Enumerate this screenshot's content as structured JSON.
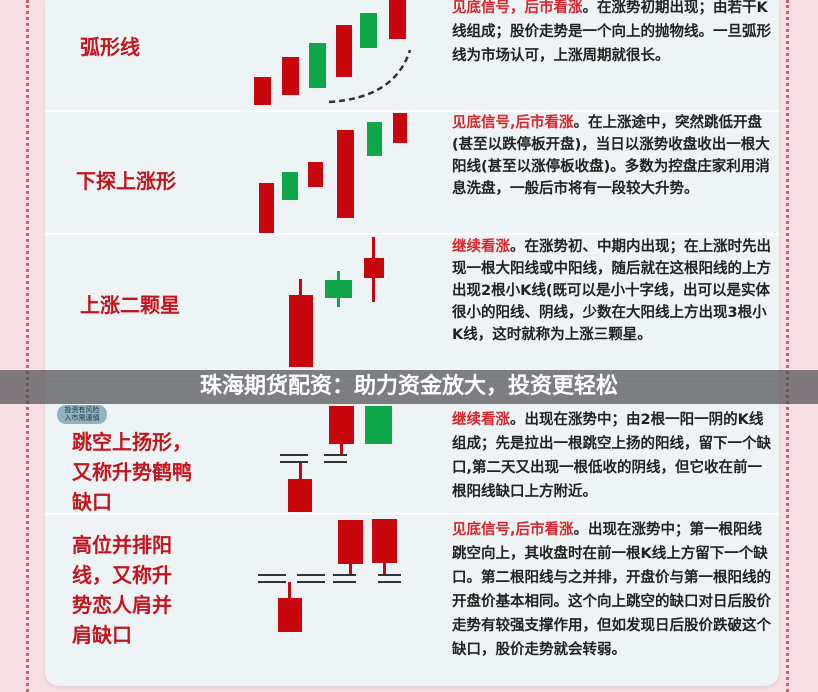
{
  "colors": {
    "bull": "#c8060e",
    "bear": "#10a64a",
    "accent": "#d8262c"
  },
  "badge": {
    "line1": "投资有风险",
    "line2": "入市需谨慎"
  },
  "banner": {
    "text": "珠海期货配资：助力资金放大，投资更轻松"
  },
  "patterns": [
    {
      "name": "弧形线",
      "signal": "见底信号，后市看涨",
      "text": "。在涨势初期出现；由若干K线组成；股价走势是一个向上的抛物线。一旦弧形线为市场认可，上涨周期就很长。"
    },
    {
      "name": "下探上涨形",
      "signal": "见底信号,后市看涨",
      "text": "。在上涨途中，突然跳低开盘(甚至以跌停板开盘)，当日以涨势收盘收出一根大阳线(甚至以涨停板收盘)。多数为控盘庄家利用消息洗盘，一般后市将有一段较大升势。"
    },
    {
      "name": "上涨二颗星",
      "signal": "继续看涨",
      "text": "。在涨势初、中期内出现；在上涨时先出现一根大阳线或中阳线，随后就在这根阳线的上方出现2根小K线(既可以是小十字线，出可以是实体很小的阳线、阴线，少数在大阳线上方出现3根小K线，这时就称为上涨三颗星。"
    },
    {
      "name": "跳空上扬形，又称升势鹤鸭缺口",
      "signal": "继续看涨",
      "text": "。出现在涨势中；由2根一阳一阴的K线组成；先是拉出一根跳空上扬的阳线，留下一个缺口,第二天又出现一根低收的阴线，但它收在前一根阳线缺口上方附近。"
    },
    {
      "name": "高位并排阳线，又称升势恋人肩并肩缺口",
      "signal": "见底信号,后市看涨",
      "text": "。出现在涨势中；第一根阳线跳空向上，其收盘时在前一根K线上方留下一个缺口。第二根阳线与之并排，开盘价与第一根阳线的开盘价基本相同。这个向上跳空的缺口对日后股价走势有较强支撑作用，但如发现日后股价跌破这个缺口，股价走势就会转弱。"
    }
  ]
}
